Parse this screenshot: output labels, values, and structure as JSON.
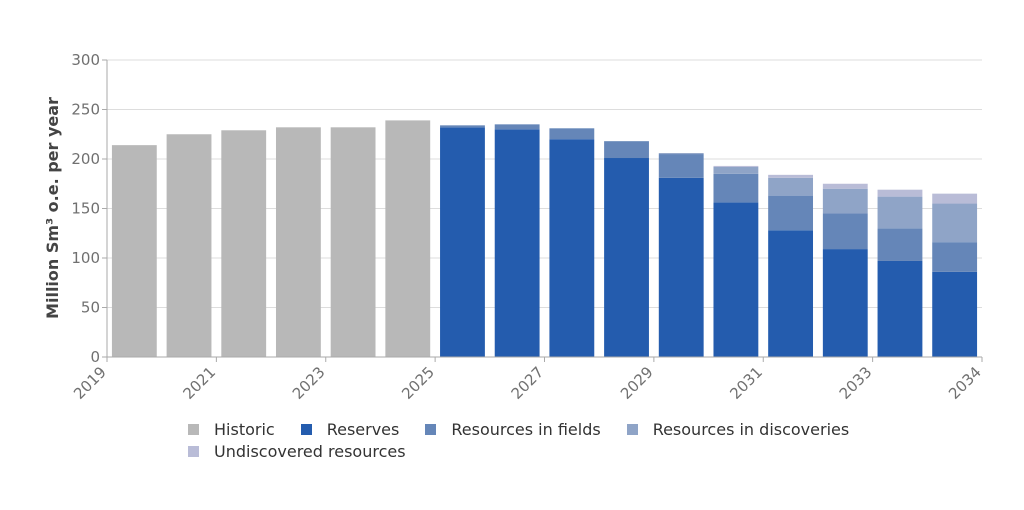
{
  "chart_data": {
    "type": "bar",
    "stacked": true,
    "title": "",
    "xlabel": "",
    "ylabel": "Million Sm³ o.e. per year",
    "ylim": [
      0,
      300
    ],
    "yticks": [
      0,
      50,
      100,
      150,
      200,
      250,
      300
    ],
    "xtick_labels": [
      "2019",
      "2021",
      "2023",
      "2025",
      "2027",
      "2029",
      "2031",
      "2033",
      "2034"
    ],
    "categories": [
      "2019",
      "2020",
      "2021",
      "2022",
      "2023",
      "2024",
      "2025",
      "2026",
      "2027",
      "2028",
      "2029",
      "2030",
      "2031",
      "2032",
      "2033",
      "2034"
    ],
    "grid": true,
    "legend_position": "bottom",
    "series": [
      {
        "name": "Historic",
        "color": "#b8b8b8",
        "values": [
          214,
          225,
          229,
          232,
          232,
          239,
          0,
          0,
          0,
          0,
          0,
          0,
          0,
          0,
          0,
          0
        ]
      },
      {
        "name": "Reserves",
        "color": "#245cae",
        "values": [
          0,
          0,
          0,
          0,
          0,
          0,
          232,
          230,
          220,
          201,
          181,
          156,
          128,
          109,
          97,
          86
        ]
      },
      {
        "name": "Resources in fields",
        "color": "#6586b8",
        "values": [
          0,
          0,
          0,
          0,
          0,
          0,
          2,
          5,
          11,
          17,
          24,
          29,
          35,
          36,
          33,
          30
        ]
      },
      {
        "name": "Resources in discoveries",
        "color": "#8fa4c7",
        "values": [
          0,
          0,
          0,
          0,
          0,
          0,
          0,
          0,
          0,
          0,
          1,
          7,
          18,
          25,
          32,
          39
        ]
      },
      {
        "name": "Undiscovered resources",
        "color": "#b9bcd7",
        "values": [
          0,
          0,
          0,
          0,
          0,
          0,
          0,
          0,
          0,
          0,
          0,
          1,
          3,
          5,
          7,
          10
        ]
      }
    ]
  }
}
